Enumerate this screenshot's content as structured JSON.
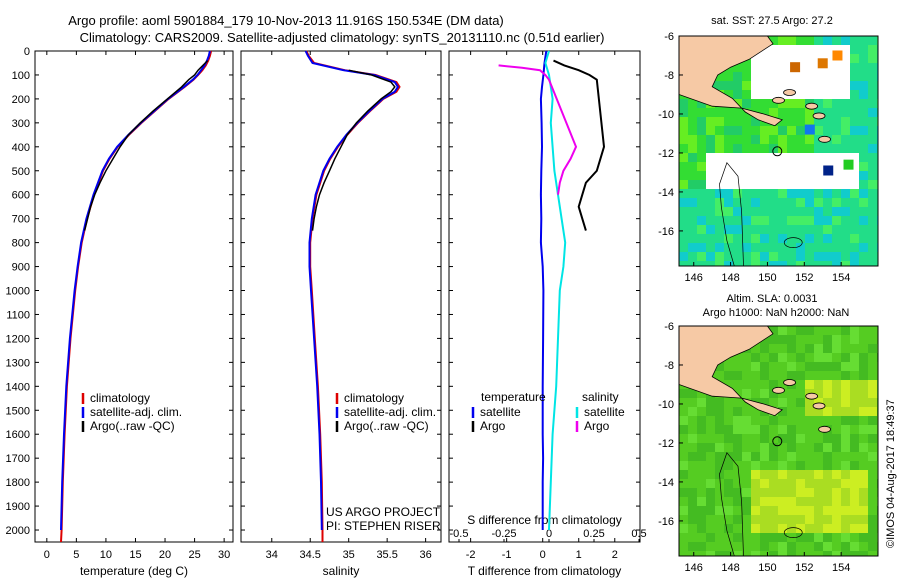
{
  "header": {
    "line1": "Argo profile: aoml 5901884_179 10-Nov-2013 11.916S 150.534E (DM data)",
    "line2": "Climatology: CARS2009. Satellite-adjusted climatology: synTS_20131110.nc (0.51d earlier)"
  },
  "depth_ticks": [
    "0",
    "100",
    "200",
    "300",
    "400",
    "500",
    "600",
    "700",
    "800",
    "900",
    "1000",
    "1100",
    "1200",
    "1300",
    "1400",
    "1500",
    "1600",
    "1700",
    "1800",
    "1900",
    "2000"
  ],
  "colors": {
    "climatology": "#dd0000",
    "satellite": "#0000ee",
    "argo": "#000000",
    "sal_satellite": "#00e5e5",
    "sal_argo": "#ee00ee",
    "land": "#f6c9a5"
  },
  "chart_data": [
    {
      "type": "line",
      "panel": "temperature",
      "xlabel": "temperature (deg C)",
      "ylabel": "depth",
      "xlim": [
        -2,
        31.5
      ],
      "ylim": [
        2050,
        0
      ],
      "xticks": [
        "0",
        "5",
        "10",
        "15",
        "20",
        "25",
        "30"
      ],
      "legend": [
        "climatology",
        "satellite-adj. clim.",
        "Argo(..raw -QC)"
      ],
      "series": [
        {
          "name": "climatology",
          "depth": [
            0,
            20,
            40,
            60,
            80,
            100,
            120,
            150,
            200,
            250,
            300,
            350,
            400,
            450,
            500,
            600,
            700,
            800,
            900,
            1000,
            1200,
            1400,
            1600,
            1800,
            2000,
            2050
          ],
          "values": [
            27.8,
            27.6,
            27.3,
            26.9,
            26.3,
            25.6,
            24.8,
            23.3,
            20.6,
            18.3,
            16.0,
            13.9,
            12.0,
            10.6,
            9.5,
            8.0,
            6.8,
            5.9,
            5.3,
            4.8,
            4.0,
            3.4,
            3.0,
            2.7,
            2.5,
            2.4
          ]
        },
        {
          "name": "satellite-adj. clim.",
          "depth": [
            0,
            20,
            40,
            60,
            80,
            100,
            120,
            150,
            200,
            250,
            300,
            350,
            400,
            450,
            500,
            600,
            700,
            800,
            900,
            1000,
            1200,
            1400,
            1600,
            1800,
            2000
          ],
          "values": [
            27.6,
            27.4,
            27.1,
            26.7,
            26.1,
            25.5,
            24.7,
            23.2,
            20.5,
            18.2,
            15.9,
            13.8,
            11.9,
            10.5,
            9.4,
            7.9,
            6.7,
            5.8,
            5.2,
            4.7,
            3.9,
            3.3,
            2.9,
            2.6,
            2.4
          ]
        },
        {
          "name": "Argo",
          "depth": [
            40,
            60,
            80,
            100,
            120,
            150,
            200,
            250,
            300,
            350,
            400,
            450,
            500,
            550,
            600,
            650,
            700,
            750
          ],
          "values": [
            27.2,
            26.4,
            25.6,
            25.0,
            24.0,
            22.8,
            20.4,
            18.0,
            15.8,
            13.8,
            12.4,
            11.2,
            10.0,
            9.0,
            8.1,
            7.4,
            6.9,
            6.4
          ]
        }
      ]
    },
    {
      "type": "line",
      "panel": "salinity",
      "xlabel": "salinity",
      "ylabel": "depth",
      "xlim": [
        33.6,
        36.2
      ],
      "ylim": [
        2050,
        0
      ],
      "xticks": [
        "34",
        "34.5",
        "35",
        "35.5",
        "36"
      ],
      "legend": [
        "climatology",
        "satellite-adj. clim.",
        "Argo(..raw -QC)"
      ],
      "series": [
        {
          "name": "climatology",
          "depth": [
            0,
            20,
            50,
            80,
            100,
            130,
            150,
            170,
            200,
            250,
            300,
            350,
            400,
            450,
            500,
            600,
            700,
            800,
            900,
            1000,
            1200,
            1400,
            1600,
            1800,
            2000,
            2050
          ],
          "values": [
            34.45,
            34.48,
            34.55,
            34.95,
            35.35,
            35.62,
            35.66,
            35.62,
            35.45,
            35.28,
            35.12,
            34.98,
            34.86,
            34.76,
            34.68,
            34.58,
            34.53,
            34.5,
            34.5,
            34.52,
            34.56,
            34.6,
            34.63,
            34.65,
            34.66,
            34.66
          ]
        },
        {
          "name": "satellite-adj. clim.",
          "depth": [
            0,
            20,
            50,
            80,
            100,
            130,
            150,
            170,
            200,
            250,
            300,
            350,
            400,
            450,
            500,
            600,
            700,
            800,
            900,
            1000,
            1200,
            1400,
            1600,
            1800,
            2000
          ],
          "values": [
            34.44,
            34.47,
            34.53,
            34.93,
            35.33,
            35.6,
            35.64,
            35.6,
            35.44,
            35.27,
            35.11,
            34.97,
            34.85,
            34.75,
            34.67,
            34.57,
            34.52,
            34.49,
            34.49,
            34.51,
            34.55,
            34.59,
            34.62,
            34.64,
            34.65
          ]
        },
        {
          "name": "Argo",
          "depth": [
            80,
            100,
            130,
            150,
            170,
            200,
            250,
            300,
            350,
            400,
            450,
            500,
            550,
            600,
            650,
            700,
            750
          ],
          "values": [
            35.0,
            35.3,
            35.55,
            35.6,
            35.55,
            35.42,
            35.25,
            35.1,
            34.98,
            34.9,
            34.82,
            34.75,
            34.68,
            34.62,
            34.58,
            34.55,
            34.53
          ]
        }
      ]
    },
    {
      "type": "line",
      "panel": "difference",
      "xlabel": "T difference from climatology",
      "xlabel2": "S difference from climatology",
      "ylabel": "depth",
      "xlim": [
        -2.6,
        2.7
      ],
      "ylim": [
        2050,
        0
      ],
      "xticks": [
        "-2",
        "-1",
        "0",
        "1",
        "2"
      ],
      "xticks2": [
        "-0.5",
        "-0.25",
        "0",
        "0.25",
        "0.5"
      ],
      "legend_headers": [
        "temperature",
        "salinity"
      ],
      "legend": [
        "satellite",
        "Argo",
        "satellite",
        "Argo"
      ],
      "series": [
        {
          "name": "T satellite",
          "depth": [
            0,
            50,
            100,
            150,
            200,
            300,
            400,
            500,
            600,
            700,
            800,
            900,
            1000,
            1200,
            1400,
            1600,
            1700,
            1800,
            1900,
            2000
          ],
          "values": [
            0.1,
            0.05,
            0.02,
            -0.02,
            -0.05,
            -0.03,
            -0.02,
            -0.04,
            -0.05,
            -0.04,
            -0.05,
            0.0,
            0.02,
            0.01,
            0.0,
            0.0,
            0.01,
            0.0,
            0.0,
            0.0
          ]
        },
        {
          "name": "T Argo",
          "depth": [
            40,
            60,
            80,
            100,
            120,
            400,
            450,
            500,
            550,
            600,
            650,
            700,
            750
          ],
          "values": [
            0.3,
            0.6,
            1.0,
            1.3,
            1.5,
            1.7,
            1.6,
            1.5,
            1.2,
            1.1,
            1.0,
            1.1,
            1.2
          ]
        },
        {
          "name": "S satellite",
          "depth": [
            0,
            50,
            100,
            200,
            300,
            400,
            500,
            600,
            700,
            800,
            900,
            1000,
            1200,
            1400,
            1600,
            1800,
            2000
          ],
          "values": [
            0.0,
            -0.02,
            0.0,
            0.02,
            0.01,
            0.02,
            0.03,
            0.05,
            0.07,
            0.09,
            0.08,
            0.06,
            0.05,
            0.04,
            0.02,
            0.01,
            0.0
          ]
        },
        {
          "name": "S Argo",
          "depth": [
            60,
            70,
            80,
            100,
            120,
            400,
            450,
            500,
            550,
            600
          ],
          "values": [
            -0.28,
            -0.15,
            -0.05,
            -0.02,
            0.0,
            0.15,
            0.12,
            0.08,
            0.06,
            0.05
          ]
        }
      ]
    },
    {
      "type": "heatmap",
      "panel": "map-sst",
      "title": "sat. SST: 27.5 Argo: 27.2",
      "xlim": [
        145.2,
        156
      ],
      "ylim": [
        -17.8,
        -6
      ],
      "xticks": [
        "146",
        "148",
        "150",
        "152",
        "154"
      ],
      "yticks": [
        "-6",
        "-8",
        "-10",
        "-12",
        "-14",
        "-16"
      ],
      "argo_position": [
        150.534,
        -11.916
      ]
    },
    {
      "type": "heatmap",
      "panel": "map-sla",
      "title": "Altim. SLA: 0.0031",
      "subtitle": "Argo h1000: NaN h2000: NaN",
      "xlim": [
        145.2,
        156
      ],
      "ylim": [
        -17.8,
        -6
      ],
      "xticks": [
        "146",
        "148",
        "150",
        "152",
        "154"
      ],
      "yticks": [
        "-6",
        "-8",
        "-10",
        "-12",
        "-14",
        "-16"
      ],
      "argo_position": [
        150.534,
        -11.916
      ]
    }
  ],
  "annotations": {
    "project_line1": "US ARGO PROJECT",
    "project_line2": "PI: STEPHEN RISER",
    "timestamp": "©IMOS 04-Aug-2017 18:49:37"
  }
}
